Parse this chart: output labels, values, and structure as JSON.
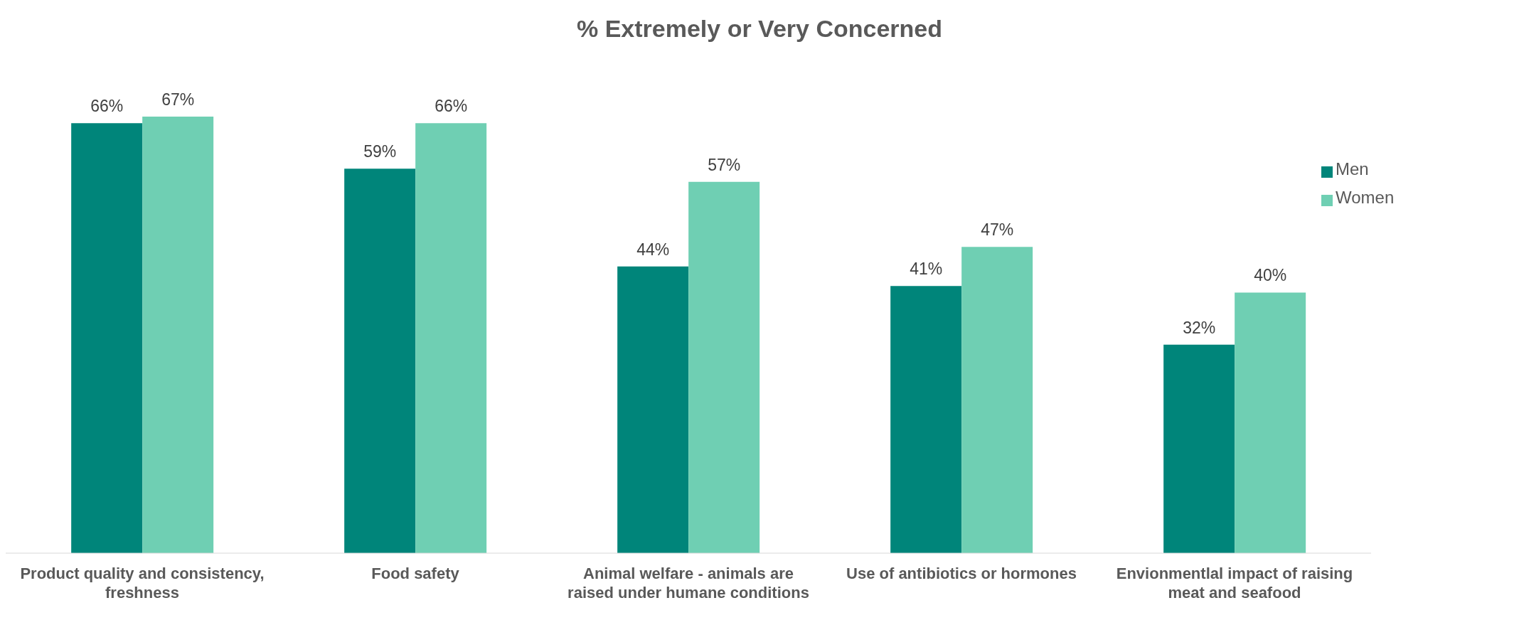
{
  "chart_data": {
    "type": "bar",
    "title": "% Extremely or Very Concerned",
    "categories": [
      "Product quality and consistency, freshness",
      "Food safety",
      "Animal welfare - animals are raised under humane conditions",
      "Use of antibiotics or hormones",
      "Envionmentlal impact of raising meat and seafood"
    ],
    "series": [
      {
        "name": "Men",
        "color": "#00857a",
        "values": [
          66,
          59,
          44,
          41,
          32
        ],
        "value_labels": [
          "66%",
          "59%",
          "44%",
          "41%",
          "32%"
        ]
      },
      {
        "name": "Women",
        "color": "#6fcfb3",
        "values": [
          67,
          66,
          57,
          47,
          40
        ],
        "value_labels": [
          "67%",
          "66%",
          "57%",
          "47%",
          "40%"
        ]
      }
    ],
    "legend": "top right",
    "grid": false
  }
}
